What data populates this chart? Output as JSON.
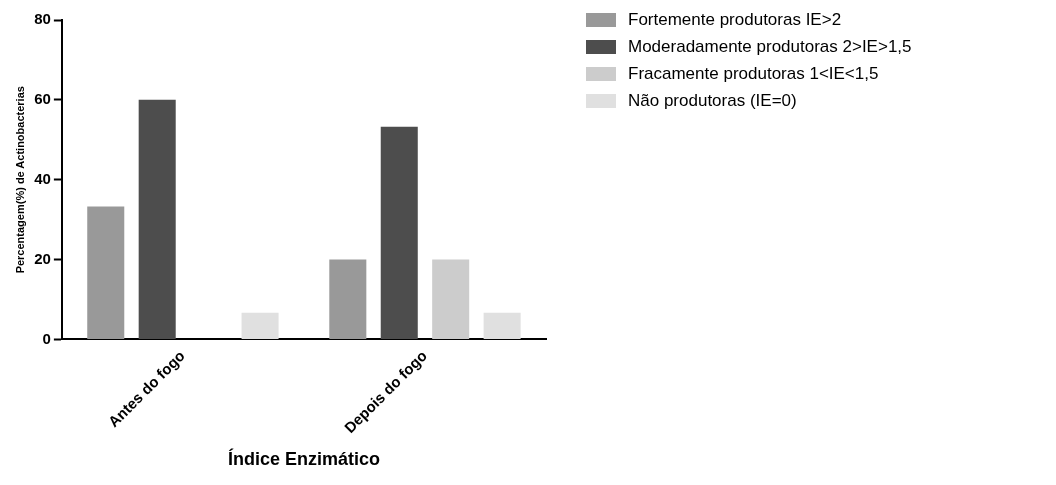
{
  "chart_data": {
    "type": "bar",
    "xlabel": "Índice Enzimático",
    "ylabel": "Percentagem(%) de Actinobacterias",
    "categories": [
      "Antes do fogo",
      "Depois do fogo"
    ],
    "series": [
      {
        "name": "Fortemente produtoras IE>2",
        "color": "#999999",
        "values": [
          33.3,
          20
        ]
      },
      {
        "name": "Moderadamente produtoras 2>IE>1,5",
        "color": "#4d4d4d",
        "values": [
          60,
          53.3
        ]
      },
      {
        "name": "Fracamente produtoras 1<IE<1,5",
        "color": "#cccccc",
        "values": [
          0,
          20
        ]
      },
      {
        "name": "Não produtoras (IE=0)",
        "color": "#e0e0e0",
        "values": [
          6.7,
          6.7
        ]
      }
    ],
    "ylim": [
      0,
      80
    ],
    "yticks": [
      0,
      20,
      40,
      60,
      80
    ],
    "grid": false,
    "legend": "top right"
  }
}
